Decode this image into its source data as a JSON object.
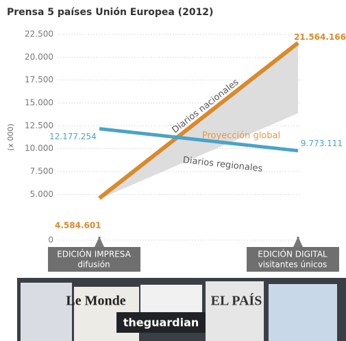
{
  "chart_data": {
    "type": "line",
    "title": "Prensa 5 países Unión Europea (2012)",
    "y_label": "(x 000)",
    "categories": [
      "EDICIÓN IMPRESA",
      "EDICIÓN DIGITAL"
    ],
    "category_sublabels": [
      "difusión",
      "visitantes únicos"
    ],
    "series": [
      {
        "name": "Diarios nacionales",
        "color": "#d98a2b",
        "values": [
          4584.601,
          21564.166
        ],
        "value_labels": [
          "4.584.601",
          "21.564.166"
        ]
      },
      {
        "name": "Diarios regionales",
        "color": "#4aa3c8",
        "values": [
          12177.254,
          9773.111
        ],
        "value_labels": [
          "12.177.254",
          "9.773.111"
        ]
      }
    ],
    "annotations": [
      "Proyección global"
    ],
    "ylim": [
      0,
      22500
    ],
    "yticks": [
      0,
      {
        "value": 5000,
        "label": "5.000"
      },
      {
        "value": 7500,
        "label": "7.500"
      },
      {
        "value": 10000,
        "label": "10.000"
      },
      {
        "value": 12500,
        "label": "12.500"
      },
      {
        "value": 15000,
        "label": "15.000"
      },
      {
        "value": 17500,
        "label": "17.500"
      },
      {
        "value": 20000,
        "label": "20.000"
      },
      {
        "value": 22500,
        "label": "22.500"
      }
    ],
    "grid": true
  },
  "photo": {
    "texts": [
      "Le Monde",
      "theguardian",
      "EL PAÍS"
    ]
  }
}
